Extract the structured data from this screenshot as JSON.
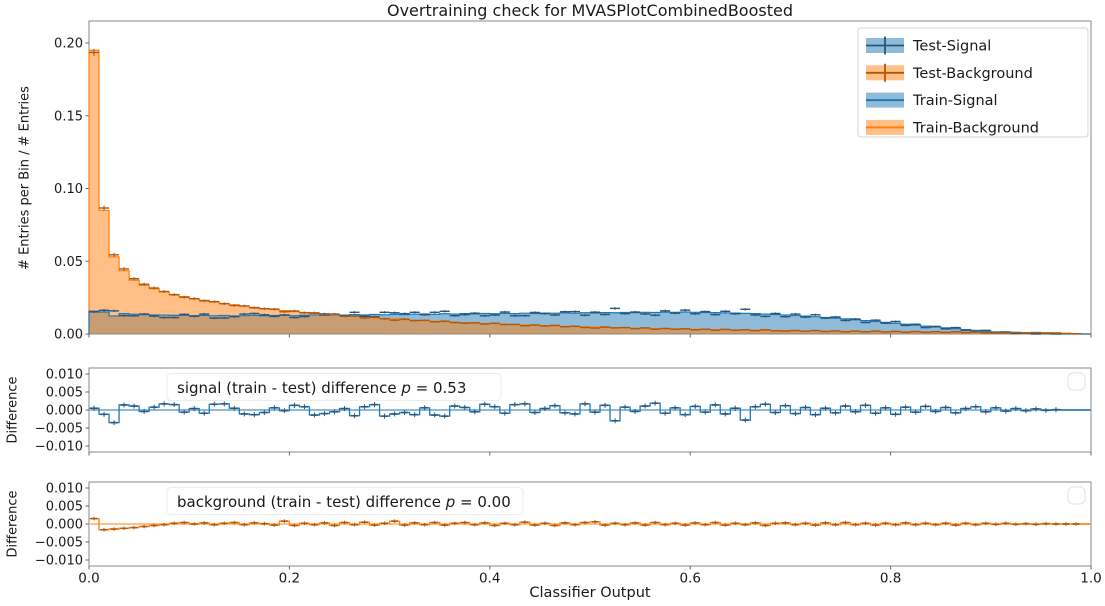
{
  "colors": {
    "signal_line": "#1f77b4",
    "signal_fill": "#8fbbd9",
    "signal_dark": "#27567f",
    "background_line": "#ff7f0e",
    "background_fill": "#ffbf86",
    "background_dark": "#b25708",
    "spine": "#8a8a8a",
    "tick": "#666666",
    "text": "#1a1a1a",
    "legend_border": "#d5d5d5",
    "annotation_border": "#ececec"
  },
  "chart_data": {
    "type": "histogram",
    "title": "Overtraining check for MVASPlotCombinedBoosted",
    "xlabel": "Classifier Output",
    "xlim": [
      0.0,
      1.0
    ],
    "bins": {
      "start": 0.0,
      "end": 1.0,
      "count": 100
    },
    "xticks": {
      "values": [
        0.0,
        0.2,
        0.4,
        0.6,
        0.8,
        1.0
      ],
      "labels": [
        "0.0",
        "0.2",
        "0.4",
        "0.6",
        "0.8",
        "1.0"
      ]
    },
    "legend": {
      "position": "upper right",
      "entries": [
        {
          "label": "Test-Signal",
          "marker": "errorbar",
          "color": "signal"
        },
        {
          "label": "Test-Background",
          "marker": "errorbar",
          "color": "background"
        },
        {
          "label": "Train-Signal",
          "marker": "stepfilled-line",
          "color": "signal"
        },
        {
          "label": "Train-Background",
          "marker": "stepfilled-line",
          "color": "background"
        }
      ]
    },
    "panels": [
      {
        "id": "main",
        "ylabel": "# Entries per Bin / # Entries",
        "ylim": [
          0.0,
          0.2151
        ],
        "yticks": {
          "values": [
            0.0,
            0.05,
            0.1,
            0.15,
            0.2
          ],
          "labels": [
            "0.00",
            "0.05",
            "0.10",
            "0.15",
            "0.20"
          ]
        },
        "series": [
          {
            "name": "Train-Signal",
            "type": "stepfilled",
            "color": "signal",
            "values": [
              0.0157,
              0.0151,
              0.0124,
              0.014,
              0.0136,
              0.0133,
              0.0131,
              0.013,
              0.0128,
              0.0129,
              0.0126,
              0.0128,
              0.0125,
              0.0127,
              0.0124,
              0.0126,
              0.0128,
              0.0125,
              0.0127,
              0.0129,
              0.0126,
              0.0129,
              0.0131,
              0.0128,
              0.0132,
              0.013,
              0.0133,
              0.0131,
              0.0134,
              0.0132,
              0.0135,
              0.0133,
              0.0136,
              0.0138,
              0.0135,
              0.0139,
              0.0137,
              0.014,
              0.0138,
              0.0141,
              0.0139,
              0.0142,
              0.014,
              0.0143,
              0.0141,
              0.0144,
              0.0143,
              0.0145,
              0.0143,
              0.0146,
              0.0144,
              0.0147,
              0.0146,
              0.0148,
              0.0147,
              0.0149,
              0.0148,
              0.015,
              0.0149,
              0.0151,
              0.0149,
              0.0148,
              0.0147,
              0.0145,
              0.0144,
              0.0142,
              0.014,
              0.0137,
              0.0134,
              0.0131,
              0.0127,
              0.0123,
              0.0119,
              0.0114,
              0.0109,
              0.0104,
              0.0098,
              0.0092,
              0.0086,
              0.008,
              0.0074,
              0.0067,
              0.0061,
              0.0054,
              0.0048,
              0.0042,
              0.0036,
              0.003,
              0.0025,
              0.002,
              0.0015,
              0.0011,
              0.0008,
              0.0005,
              0.0003,
              0.0002,
              0.0001,
              0.0,
              0.0,
              0.0
            ]
          },
          {
            "name": "Train-Background",
            "type": "stepfilled",
            "color": "background",
            "values": [
              0.195,
              0.085,
              0.053,
              0.0435,
              0.037,
              0.0335,
              0.0312,
              0.029,
              0.0272,
              0.0257,
              0.0243,
              0.0231,
              0.022,
              0.021,
              0.02,
              0.0191,
              0.0183,
              0.0175,
              0.0168,
              0.0161,
              0.0154,
              0.0148,
              0.0142,
              0.0136,
              0.0131,
              0.0126,
              0.0121,
              0.0116,
              0.0112,
              0.0107,
              0.0103,
              0.0099,
              0.0095,
              0.0092,
              0.0088,
              0.0085,
              0.0081,
              0.0078,
              0.0075,
              0.0072,
              0.007,
              0.0067,
              0.0064,
              0.0062,
              0.0059,
              0.0057,
              0.0055,
              0.0053,
              0.0051,
              0.0049,
              0.0047,
              0.0045,
              0.0044,
              0.0042,
              0.004,
              0.0039,
              0.0037,
              0.0036,
              0.0035,
              0.0033,
              0.0032,
              0.0031,
              0.003,
              0.0029,
              0.0028,
              0.0027,
              0.0026,
              0.0025,
              0.0024,
              0.0023,
              0.0022,
              0.0021,
              0.0021,
              0.002,
              0.0019,
              0.0019,
              0.0018,
              0.0017,
              0.0017,
              0.0016,
              0.0016,
              0.0015,
              0.0015,
              0.0014,
              0.0014,
              0.0013,
              0.0013,
              0.0012,
              0.0012,
              0.0011,
              0.0011,
              0.001,
              0.001,
              0.0009,
              0.0009,
              0.0008,
              0.0007,
              0.0004,
              0.0002,
              0.0
            ]
          },
          {
            "name": "Test-Signal",
            "type": "errorbar",
            "color": "signal",
            "note": "equals Train-Signal minus the signal (train - test) difference"
          },
          {
            "name": "Test-Background",
            "type": "errorbar",
            "color": "background",
            "note": "equals Train-Background minus the background (train - test) difference"
          }
        ]
      },
      {
        "id": "signal-difference",
        "ylabel": "Difference",
        "ylim": [
          -0.0117,
          0.0117
        ],
        "yticks": {
          "values": [
            0.01,
            0.005,
            0.0,
            -0.005,
            -0.01
          ],
          "labels": [
            "0.010",
            "0.005",
            "0.000",
            "−0.005",
            "−0.010"
          ]
        },
        "empty_legend": true,
        "annotation": {
          "label": "signal (train - test) difference",
          "p_symbol": "p",
          "p_value": "= 0.53"
        },
        "series": [
          {
            "name": "signal (train - test)",
            "type": "step-errorbar",
            "color": "signal",
            "values": [
              0.0005,
              -0.0012,
              -0.0035,
              0.0014,
              0.0011,
              -0.0004,
              0.0008,
              0.0017,
              0.0015,
              -0.0006,
              0.0004,
              -0.0009,
              0.0016,
              0.0017,
              0.0005,
              -0.0011,
              -0.0013,
              -0.0007,
              0.0006,
              -0.0002,
              0.0013,
              0.0009,
              -0.0014,
              -0.001,
              -0.0005,
              0.0004,
              -0.0016,
              0.0009,
              0.0015,
              -0.0017,
              -0.0011,
              -0.0007,
              -0.0013,
              0.0006,
              -0.0014,
              -0.0017,
              0.0011,
              0.0007,
              -0.0005,
              0.0016,
              0.0009,
              -0.0009,
              0.0015,
              0.0017,
              -0.0007,
              0.0004,
              0.0012,
              -0.0008,
              -0.0011,
              0.0017,
              -0.0006,
              0.0013,
              -0.003,
              0.0008,
              -0.0004,
              0.0011,
              0.0019,
              -0.0009,
              0.0006,
              -0.0013,
              0.001,
              -0.0006,
              0.0014,
              -0.0011,
              0.0005,
              -0.0028,
              0.0009,
              0.0016,
              -0.0007,
              0.0012,
              -0.001,
              0.0007,
              -0.0013,
              0.0005,
              -0.0008,
              0.0011,
              -0.0005,
              0.0013,
              -0.0009,
              0.0006,
              -0.0012,
              0.0008,
              -0.0006,
              0.001,
              -0.0004,
              0.0007,
              -0.0008,
              0.0004,
              0.0009,
              -0.0005,
              0.0006,
              -0.0003,
              0.0004,
              -0.0002,
              0.0003,
              -0.0001,
              0.0001,
              0.0,
              0.0,
              0.0
            ]
          }
        ]
      },
      {
        "id": "background-difference",
        "ylabel": "Difference",
        "ylim": [
          -0.0117,
          0.0117
        ],
        "yticks": {
          "values": [
            0.01,
            0.005,
            0.0,
            -0.005,
            -0.01
          ],
          "labels": [
            "0.010",
            "0.005",
            "0.000",
            "−0.005",
            "−0.010"
          ]
        },
        "empty_legend": true,
        "annotation": {
          "label": "background (train - test) difference",
          "p_symbol": "p",
          "p_value": "= 0.00"
        },
        "series": [
          {
            "name": "background (train - test)",
            "type": "step-errorbar",
            "color": "background",
            "values": [
              0.0015,
              -0.0016,
              -0.0014,
              -0.0012,
              -0.001,
              -0.0007,
              -0.0004,
              -0.0002,
              0.0002,
              0.0004,
              0.0,
              0.0003,
              -0.0002,
              0.0002,
              0.0004,
              -0.0002,
              0.0003,
              0.0001,
              -0.0003,
              0.0008,
              -0.0004,
              0.0002,
              -0.0002,
              0.0003,
              -0.0004,
              0.0004,
              -0.0002,
              0.0005,
              -0.0003,
              0.0002,
              0.0008,
              -0.0003,
              0.0003,
              -0.0002,
              0.0004,
              -0.0003,
              0.0002,
              0.0004,
              -0.0002,
              0.0003,
              -0.0004,
              0.0002,
              -0.0002,
              0.0005,
              -0.0003,
              0.0002,
              -0.0004,
              0.0003,
              -0.0002,
              0.0004,
              0.0006,
              -0.0003,
              0.0002,
              -0.0002,
              0.0003,
              -0.0003,
              0.0004,
              -0.0002,
              0.0002,
              -0.0003,
              0.0003,
              -0.0002,
              0.0004,
              -0.0003,
              0.0002,
              -0.0002,
              0.0003,
              -0.0004,
              0.0002,
              0.0003,
              -0.0002,
              0.0002,
              -0.0003,
              0.0003,
              -0.0002,
              0.0004,
              -0.0002,
              0.0002,
              -0.0003,
              0.0002,
              -0.0002,
              0.0003,
              -0.0002,
              0.0002,
              -0.0002,
              0.0002,
              -0.0003,
              0.0002,
              -0.0002,
              0.0002,
              -0.0001,
              0.0002,
              -0.0001,
              0.0001,
              -0.0001,
              0.0001,
              0.0,
              0.0,
              0.0,
              0.0
            ]
          }
        ]
      }
    ]
  }
}
